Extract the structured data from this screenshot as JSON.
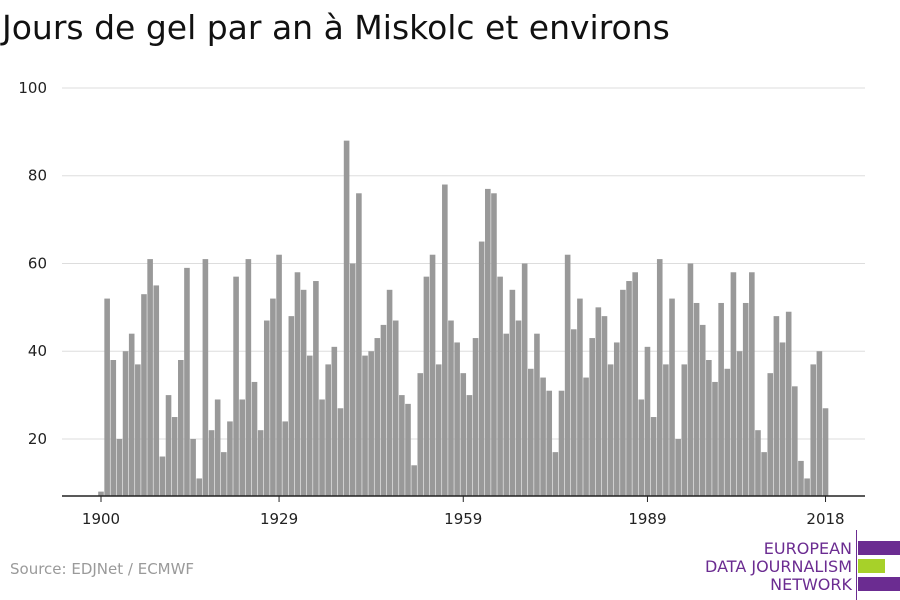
{
  "title": "Jours de gel par an à Miskolc et environs",
  "source": "Source: EDJNet / ECMWF",
  "logo": {
    "line1": "EUROPEAN",
    "line2": "DATA JOURNALISM",
    "line3": "NETWORK",
    "colors": {
      "purple": "#6b2c91",
      "green": "#a7d129"
    }
  },
  "colors": {
    "bar": "#999999",
    "grid": "#dddddd",
    "axis": "#222222",
    "text": "#222222"
  },
  "chart_data": {
    "type": "bar",
    "title": "Jours de gel par an à Miskolc et environs",
    "xlabel": "",
    "ylabel": "",
    "ylim": [
      7,
      100
    ],
    "yticks": [
      20,
      40,
      60,
      80,
      100
    ],
    "xticks": [
      1900,
      1929,
      1959,
      1989,
      2018
    ],
    "grid": true,
    "x_start": 1900,
    "x_end": 2018,
    "values": [
      8,
      52,
      38,
      20,
      40,
      44,
      37,
      53,
      61,
      55,
      16,
      30,
      25,
      38,
      59,
      20,
      11,
      61,
      22,
      29,
      17,
      24,
      57,
      29,
      61,
      33,
      22,
      47,
      52,
      62,
      24,
      48,
      58,
      54,
      39,
      56,
      29,
      37,
      41,
      27,
      88,
      60,
      76,
      39,
      40,
      43,
      46,
      54,
      47,
      30,
      28,
      14,
      35,
      57,
      62,
      37,
      78,
      47,
      42,
      35,
      30,
      43,
      65,
      77,
      76,
      57,
      44,
      54,
      47,
      60,
      36,
      44,
      34,
      31,
      17,
      31,
      62,
      45,
      52,
      34,
      43,
      50,
      48,
      37,
      42,
      54,
      56,
      58,
      29,
      41,
      25,
      61,
      37,
      52,
      20,
      37,
      60,
      51,
      46,
      38,
      33,
      51,
      36,
      58,
      40,
      51,
      58,
      22,
      17,
      35,
      48,
      42,
      49,
      32,
      15,
      11,
      37,
      40,
      27
    ]
  }
}
